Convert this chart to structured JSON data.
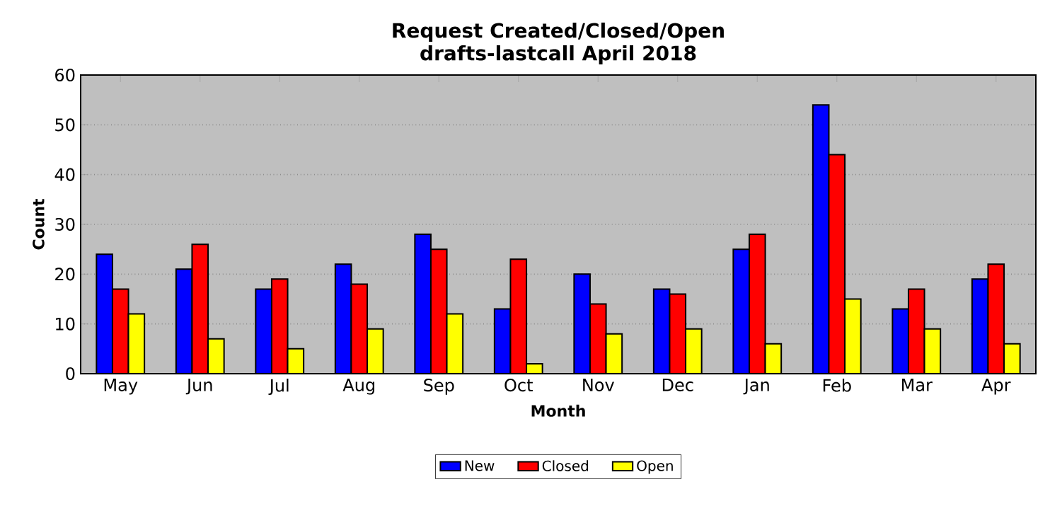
{
  "chart_data": {
    "type": "bar",
    "title": "Request Created/Closed/Open",
    "subtitle": "drafts-lastcall April 2018",
    "xlabel": "Month",
    "ylabel": "Count",
    "categories": [
      "May",
      "Jun",
      "Jul",
      "Aug",
      "Sep",
      "Oct",
      "Nov",
      "Dec",
      "Jan",
      "Feb",
      "Mar",
      "Apr"
    ],
    "series": [
      {
        "name": "New",
        "color": "#0000ff",
        "values": [
          24,
          21,
          17,
          22,
          28,
          13,
          20,
          17,
          25,
          54,
          13,
          19
        ]
      },
      {
        "name": "Closed",
        "color": "#ff0000",
        "values": [
          17,
          26,
          19,
          18,
          25,
          23,
          14,
          16,
          28,
          44,
          17,
          22
        ]
      },
      {
        "name": "Open",
        "color": "#ffff00",
        "values": [
          12,
          7,
          5,
          9,
          12,
          2,
          8,
          9,
          6,
          15,
          9,
          6
        ]
      }
    ],
    "ylim": [
      0,
      60
    ],
    "yticks": [
      0,
      10,
      20,
      30,
      40,
      50,
      60
    ],
    "grid": "y",
    "legend": "bottom"
  }
}
